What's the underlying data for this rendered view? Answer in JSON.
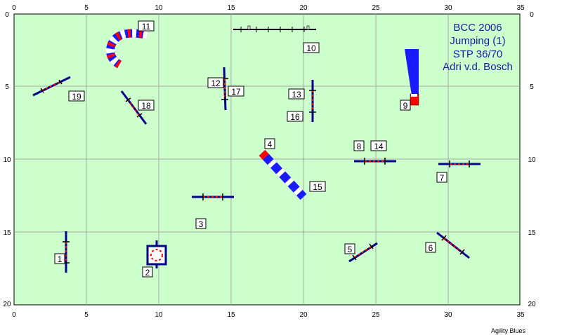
{
  "course": {
    "title_lines": [
      "BCC 2006",
      "Jumping (1)",
      "STP 36/70",
      "Adri v.d. Bosch"
    ],
    "credit": "Agility Blues",
    "x_ticks": [
      "0",
      "5",
      "10",
      "15",
      "20",
      "25",
      "30",
      "35"
    ],
    "y_ticks": [
      "0",
      "5",
      "10",
      "15",
      "20"
    ],
    "colors": {
      "field": "#ccffcc",
      "grid": "#a8a8a8",
      "pole": "#00008b",
      "red": "#ff0000",
      "blue": "#1a1aff",
      "title": "#1a1aa0"
    },
    "obstacle_numbers": [
      "1",
      "2",
      "3",
      "4",
      "5",
      "6",
      "7",
      "8",
      "9",
      "10",
      "11",
      "12",
      "13",
      "14",
      "15",
      "16",
      "17",
      "18",
      "19"
    ]
  }
}
